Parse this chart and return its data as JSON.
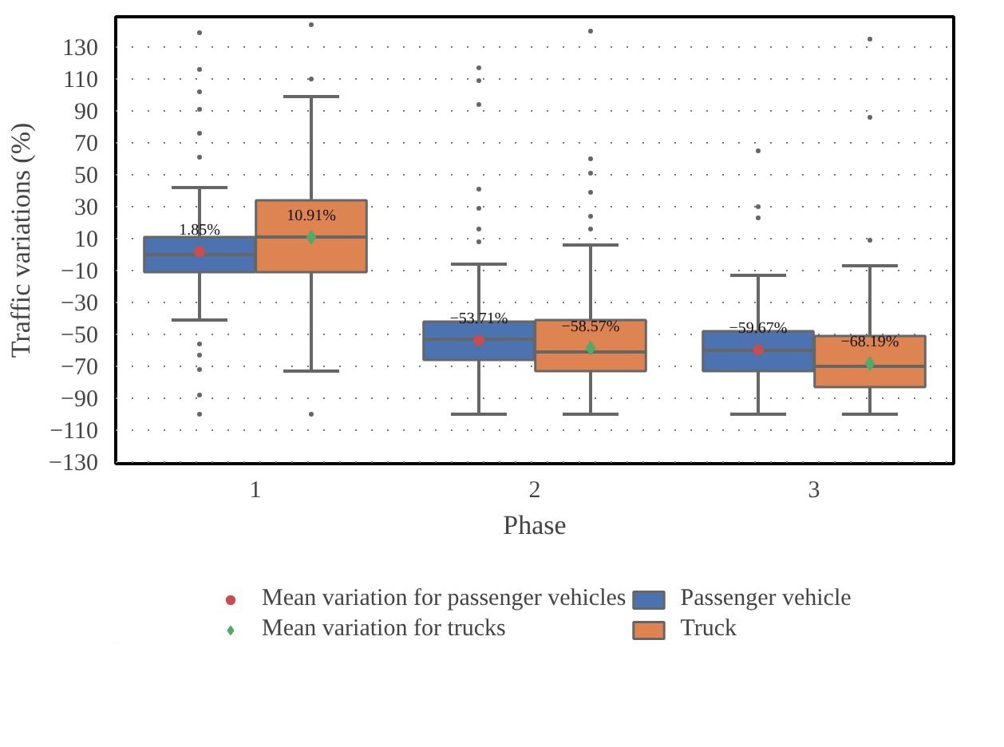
{
  "chart_data": {
    "type": "box",
    "xlabel": "Phase",
    "ylabel": "Traffic variations (%)",
    "categories": [
      "1",
      "2",
      "3"
    ],
    "ylim": [
      -131,
      149
    ],
    "yticks": [
      130,
      110,
      90,
      70,
      50,
      30,
      10,
      -10,
      -30,
      -50,
      -70,
      -90,
      -110,
      -130
    ],
    "grid": "y",
    "legend": "bottom",
    "series": [
      {
        "name": "Mean variation for passenger vehicles",
        "type": "scatter",
        "marker": "circle",
        "color": "#c44e52",
        "x": [
          "1",
          "2",
          "3"
        ],
        "values": [
          1.85,
          -53.71,
          -59.67
        ],
        "value_labels": [
          "1.85%",
          "−53.71%",
          "−59.67%"
        ]
      },
      {
        "name": "Mean variation for trucks",
        "type": "scatter",
        "marker": "diamond",
        "color": "#55a868",
        "x": [
          "1",
          "2",
          "3"
        ],
        "values": [
          10.91,
          -58.57,
          -68.19
        ],
        "value_labels": [
          "10.91%",
          "−58.57%",
          "−68.19%"
        ]
      },
      {
        "name": "Passenger vehicle",
        "color": "#4c72b0",
        "boxes": [
          {
            "low": -41,
            "q1": -11,
            "median": 0,
            "q3": 11,
            "high": 42,
            "outliers": [
              139,
              116,
              102,
              91,
              76,
              61,
              -56,
              -63,
              -72,
              -88,
              -100
            ]
          },
          {
            "low": -100,
            "q1": -66,
            "median": -53,
            "q3": -42,
            "high": -6,
            "outliers": [
              117,
              109,
              94,
              41,
              29,
              16,
              8
            ]
          },
          {
            "low": -100,
            "q1": -73,
            "median": -60,
            "q3": -48,
            "high": -13,
            "outliers": [
              65,
              30,
              23
            ]
          }
        ]
      },
      {
        "name": "Truck",
        "color": "#dd8452",
        "boxes": [
          {
            "low": -73,
            "q1": -11,
            "median": 11,
            "q3": 34,
            "high": 99,
            "outliers": [
              144,
              110,
              -100
            ]
          },
          {
            "low": -100,
            "q1": -73,
            "median": -61,
            "q3": -41,
            "high": 6,
            "outliers": [
              140,
              60,
              51,
              39,
              24,
              16
            ]
          },
          {
            "low": -100,
            "q1": -83,
            "median": -70,
            "q3": -51,
            "high": -7,
            "outliers": [
              135,
              86,
              9
            ]
          }
        ]
      }
    ]
  }
}
